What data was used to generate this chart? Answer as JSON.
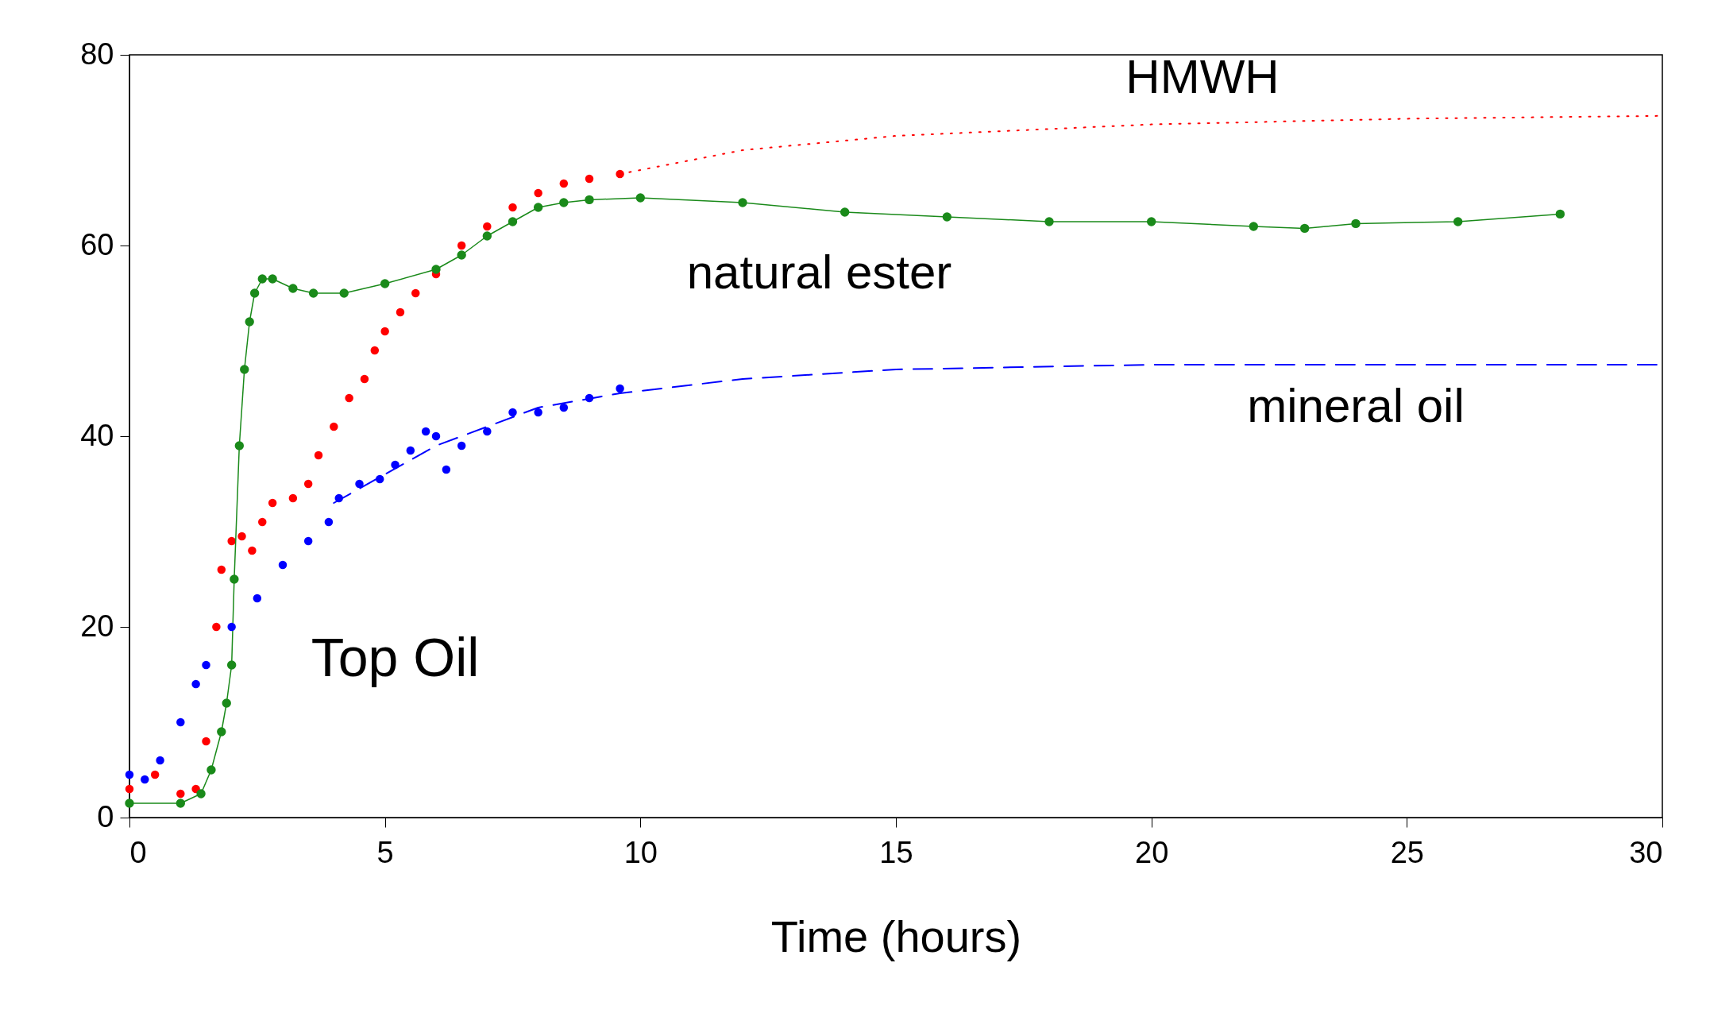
{
  "chart_data": {
    "type": "scatter",
    "xlabel": "Time (hours)",
    "xlim": [
      0,
      30
    ],
    "xticks": [
      0,
      5,
      10,
      15,
      20,
      25,
      30
    ],
    "ylim": [
      0,
      80
    ],
    "yticks": [
      0,
      20,
      40,
      60,
      80
    ],
    "marker": "circle",
    "annotations": [
      "Top Oil"
    ],
    "series": [
      {
        "color": "#ff0000",
        "x": [
          0,
          0.5,
          1.0,
          1.3,
          1.5,
          1.7,
          1.8,
          2.0,
          2.2,
          2.4,
          2.6,
          2.8,
          3.2,
          3.5,
          3.7,
          4.0,
          4.3,
          4.6,
          4.8,
          5.0,
          5.3,
          5.6,
          6.0,
          6.5,
          7.0,
          7.5,
          8.0,
          8.5,
          9.0,
          9.6
        ],
        "values": [
          3,
          4.5,
          2.5,
          3,
          8,
          20,
          26,
          29,
          29.5,
          28,
          31,
          33,
          33.5,
          35,
          38,
          41,
          44,
          46,
          49,
          51,
          53,
          55,
          57,
          60,
          62,
          64,
          65.5,
          66.5,
          67,
          67.5
        ]
      },
      {
        "name": "HMWH",
        "type": "line",
        "line_style": "dotted",
        "marker": "none",
        "color": "#ff0000",
        "x": [
          9.6,
          12,
          15,
          20,
          25,
          30
        ],
        "values": [
          67.5,
          70,
          71.5,
          72.7,
          73.3,
          73.6
        ]
      },
      {
        "name": "natural ester",
        "type": "line",
        "color": "#1a8a1a",
        "x": [
          0,
          1.0,
          1.4,
          1.6,
          1.8,
          1.9,
          2.0,
          2.05,
          2.15,
          2.25,
          2.35,
          2.45,
          2.6,
          2.8,
          3.2,
          3.6,
          4.2,
          5,
          6,
          6.5,
          7,
          7.5,
          8,
          8.5,
          9,
          10,
          12,
          14,
          16,
          18,
          20,
          22,
          23,
          24,
          26,
          28
        ],
        "values": [
          1.5,
          1.5,
          2.5,
          5,
          9,
          12,
          16,
          25,
          39,
          47,
          52,
          55,
          56.5,
          56.5,
          55.5,
          55,
          55,
          56,
          57.5,
          59,
          61,
          62.5,
          64,
          64.5,
          64.8,
          65,
          64.5,
          63.5,
          63,
          62.5,
          62.5,
          62,
          61.8,
          62.3,
          62.5,
          63.3
        ]
      },
      {
        "color": "#0000ff",
        "x": [
          0,
          0.3,
          0.6,
          1.0,
          1.3,
          1.5,
          2,
          2.5,
          3,
          3.5,
          3.9,
          4.1,
          4.5,
          4.9,
          5.2,
          5.5,
          5.8,
          6.0,
          6.2,
          6.5,
          7,
          7.5,
          8,
          8.5,
          9,
          9.6
        ],
        "values": [
          4.5,
          4,
          6,
          10,
          14,
          16,
          20,
          23,
          26.5,
          29,
          31,
          33.5,
          35,
          35.5,
          37,
          38.5,
          40.5,
          40,
          36.5,
          39,
          40.5,
          42.5,
          42.5,
          43,
          44,
          45
        ]
      },
      {
        "name": "mineral oil",
        "type": "line",
        "line_style": "dashed",
        "marker": "none",
        "color": "#0000ff",
        "x": [
          4,
          5,
          6,
          7,
          8,
          9.6,
          12,
          15,
          20,
          30
        ],
        "values": [
          33,
          36,
          39,
          41,
          43,
          44.5,
          46,
          47,
          47.5,
          47.5
        ]
      }
    ]
  }
}
